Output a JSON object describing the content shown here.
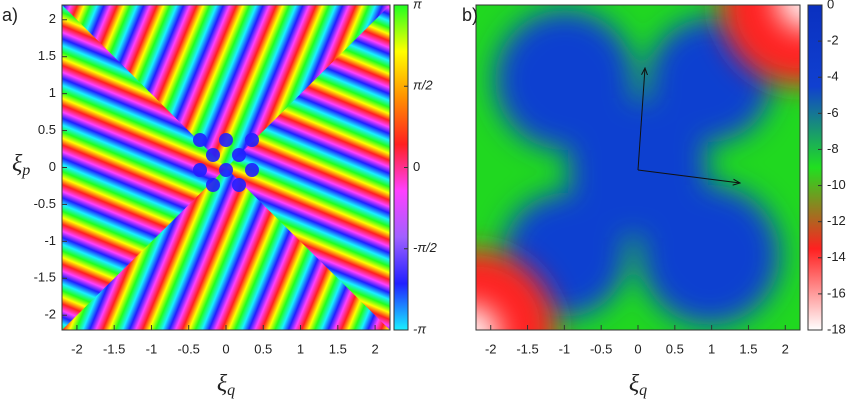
{
  "chart_data": [
    {
      "type": "heatmap",
      "panel_label": "a)",
      "xlabel": {
        "symbol": "ξ",
        "sub": "q"
      },
      "ylabel": {
        "symbol": "ξ",
        "sub": "p"
      },
      "xlim": [
        -2.2,
        2.2
      ],
      "ylim": [
        -2.2,
        2.2
      ],
      "xticks": [
        -2,
        -1.5,
        -1,
        -0.5,
        0,
        0.5,
        1,
        1.5,
        2
      ],
      "yticks": [
        -2,
        -1.5,
        -1,
        -0.5,
        0,
        0.5,
        1,
        1.5,
        2
      ],
      "clim": [
        -3.1416,
        3.1416
      ],
      "cticks": [
        {
          "value": 3.1416,
          "label": "π"
        },
        {
          "value": 1.5708,
          "label": "π/2"
        },
        0,
        {
          "value": -1.5708,
          "label": "-π/2"
        },
        {
          "value": -3.1416,
          "label": "-π"
        }
      ],
      "colorbar_colors": [
        "#19f0ff",
        "#2020ff",
        "#a060ff",
        "#ff40ff",
        "#ff2020",
        "#ff9000",
        "#ffff00",
        "#20ff20"
      ]
    },
    {
      "type": "heatmap",
      "panel_label": "b)",
      "xlabel": {
        "symbol": "ξ",
        "sub": "q"
      },
      "xlim": [
        -2.2,
        2.2
      ],
      "ylim": [
        -2.2,
        2.2
      ],
      "xticks": [
        -2,
        -1.5,
        -1,
        -0.5,
        0,
        0.5,
        1,
        1.5,
        2
      ],
      "clim": [
        -18,
        0
      ],
      "cticks": [
        0,
        -2,
        -4,
        -6,
        -8,
        -10,
        -12,
        -14,
        -16,
        -18
      ],
      "colorbar_colors": [
        "#ffffff",
        "#ff2020",
        "#20e020",
        "#1040d0",
        "#0a30c0"
      ]
    }
  ]
}
